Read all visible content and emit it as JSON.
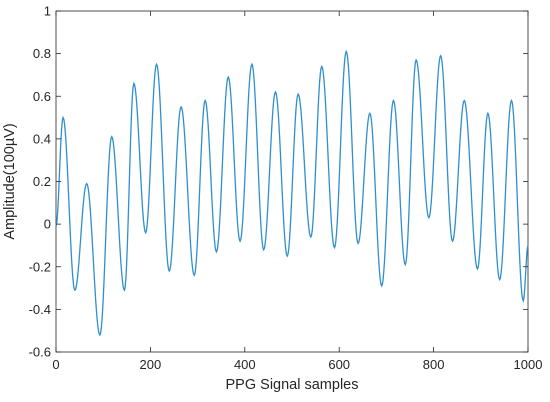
{
  "chart_data": {
    "type": "line",
    "title": "",
    "xlabel": "PPG Signal samples",
    "ylabel": "Amplitude(100µV)",
    "xlim": [
      0,
      1000
    ],
    "ylim": [
      -0.6,
      1
    ],
    "xticks": [
      0,
      200,
      400,
      600,
      800,
      1000
    ],
    "xtick_labels": [
      "0",
      "200",
      "400",
      "600",
      "800",
      "1000"
    ],
    "yticks": [
      -0.6,
      -0.4,
      -0.2,
      0,
      0.2,
      0.4,
      0.6,
      0.8,
      1
    ],
    "ytick_labels": [
      "-0.6",
      "-0.4",
      "-0.2",
      "0",
      "0.2",
      "0.4",
      "0.6",
      "0.8",
      "1"
    ],
    "grid": false,
    "legend": "none",
    "series": [
      {
        "color": "#2f8fcf",
        "x": [
          0,
          15,
          40,
          65,
          93,
          118,
          145,
          165,
          190,
          213,
          240,
          265,
          293,
          316,
          340,
          365,
          390,
          415,
          440,
          465,
          490,
          513,
          540,
          563,
          590,
          615,
          640,
          665,
          690,
          715,
          740,
          763,
          790,
          815,
          840,
          865,
          893,
          915,
          940,
          965,
          990,
          1000
        ],
        "y": [
          -0.01,
          0.5,
          -0.31,
          0.19,
          -0.52,
          0.41,
          -0.31,
          0.66,
          -0.04,
          0.75,
          -0.22,
          0.55,
          -0.24,
          0.58,
          -0.13,
          0.69,
          -0.08,
          0.75,
          -0.12,
          0.62,
          -0.15,
          0.61,
          -0.06,
          0.74,
          -0.11,
          0.81,
          -0.09,
          0.52,
          -0.29,
          0.58,
          -0.19,
          0.77,
          0.03,
          0.79,
          -0.08,
          0.58,
          -0.21,
          0.52,
          -0.26,
          0.58,
          -0.36,
          -0.1
        ]
      }
    ]
  }
}
